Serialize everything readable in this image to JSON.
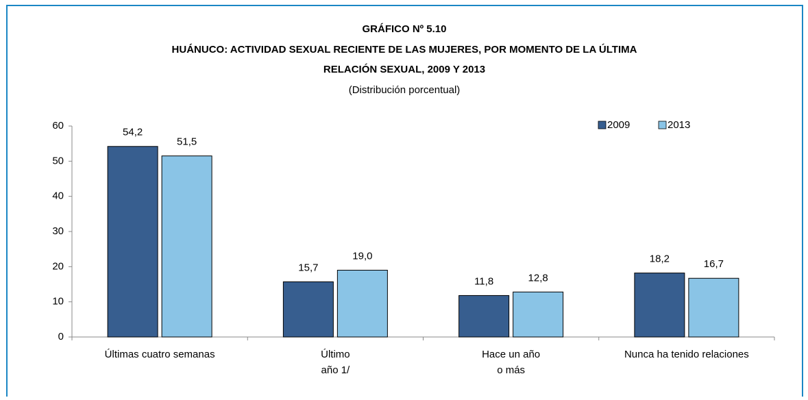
{
  "chart_data": {
    "type": "bar",
    "title": [
      "GRÁFICO Nº 5.10",
      "HUÁNUCO: ACTIVIDAD SEXUAL RECIENTE DE LAS MUJERES, POR MOMENTO DE LA ÚLTIMA",
      "RELACIÓN SEXUAL, 2009 Y 2013"
    ],
    "subtitle": "(Distribución porcentual)",
    "categories": [
      [
        "Últimas cuatro semanas"
      ],
      [
        "Último",
        "año 1/"
      ],
      [
        "Hace un año",
        "o más"
      ],
      [
        "Nunca ha tenido relaciones"
      ]
    ],
    "series": [
      {
        "name": "2009",
        "color": "#375e8f",
        "values": [
          54.2,
          15.7,
          11.8,
          18.2
        ],
        "value_labels": [
          "54,2",
          "15,7",
          "11,8",
          "18,2"
        ]
      },
      {
        "name": "2013",
        "color": "#8ac4e6",
        "values": [
          51.5,
          19.0,
          12.8,
          16.7
        ],
        "value_labels": [
          "51,5",
          "19,0",
          "12,8",
          "16,7"
        ]
      }
    ],
    "ylim": [
      0,
      60
    ],
    "yticks": [
      0,
      10,
      20,
      30,
      40,
      50,
      60
    ],
    "grid": false,
    "legend": "top-right"
  }
}
